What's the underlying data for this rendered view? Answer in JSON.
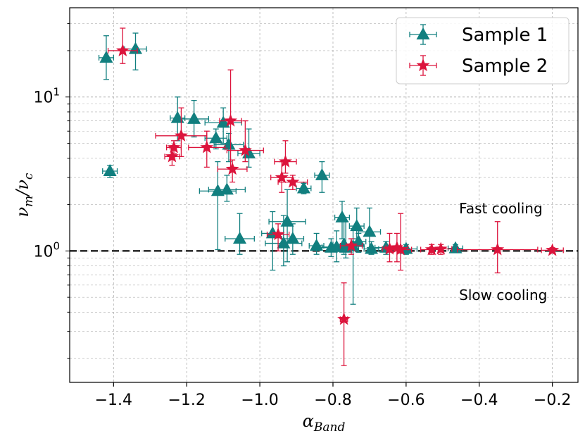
{
  "chart_data": {
    "type": "scatter",
    "xlabel": "α_Band",
    "ylabel": "ν_m/ν_c",
    "xlim": [
      -1.52,
      -0.13
    ],
    "ylim": [
      0.14,
      38
    ],
    "yscale": "log",
    "grid": true,
    "legend_position": "top-right",
    "x_ticks": [
      {
        "value": -1.4,
        "label": "−1.4"
      },
      {
        "value": -1.2,
        "label": "−1.2"
      },
      {
        "value": -1.0,
        "label": "−1.0"
      },
      {
        "value": -0.8,
        "label": "−0.8"
      },
      {
        "value": -0.6,
        "label": "−0.6"
      },
      {
        "value": -0.4,
        "label": "−0.4"
      },
      {
        "value": -0.2,
        "label": "−0.2"
      }
    ],
    "y_ticks": [
      {
        "value": 1,
        "base": "10",
        "exp": "0"
      },
      {
        "value": 10,
        "base": "10",
        "exp": "1"
      }
    ],
    "hline": {
      "y": 1.0,
      "style": "dashed",
      "color": "#333333"
    },
    "annotations": [
      {
        "text": "Fast cooling",
        "x": -0.455,
        "y": 1.75
      },
      {
        "text": "Slow cooling",
        "x": -0.455,
        "y": 0.48
      }
    ],
    "series": [
      {
        "name": "Sample 1",
        "marker": "triangle",
        "color": "#117f7f",
        "points": [
          {
            "x": -1.42,
            "y": 18.0,
            "xerr": 0.02,
            "ylo": 13.0,
            "yhi": 25.0
          },
          {
            "x": -1.34,
            "y": 20.5,
            "xerr": 0.03,
            "ylo": 15.0,
            "yhi": 26.0
          },
          {
            "x": -1.41,
            "y": 3.3,
            "xerr": 0.02,
            "ylo": 3.0,
            "yhi": 3.6
          },
          {
            "x": -1.225,
            "y": 7.3,
            "xerr": 0.02,
            "ylo": 5.2,
            "yhi": 10.0
          },
          {
            "x": -1.18,
            "y": 7.2,
            "xerr": 0.04,
            "ylo": 5.5,
            "yhi": 9.5
          },
          {
            "x": -1.12,
            "y": 5.4,
            "xerr": 0.03,
            "ylo": 4.6,
            "yhi": 6.2
          },
          {
            "x": -1.1,
            "y": 6.8,
            "xerr": 0.05,
            "ylo": 5.0,
            "yhi": 8.5
          },
          {
            "x": -1.085,
            "y": 4.9,
            "xerr": 0.04,
            "ylo": 3.8,
            "yhi": 5.8
          },
          {
            "x": -1.03,
            "y": 4.3,
            "xerr": 0.03,
            "ylo": 3.5,
            "yhi": 6.2
          },
          {
            "x": -1.115,
            "y": 2.45,
            "xerr": 0.05,
            "ylo": 1.02,
            "yhi": 3.8
          },
          {
            "x": -1.09,
            "y": 2.5,
            "xerr": 0.05,
            "ylo": 2.1,
            "yhi": 3.1
          },
          {
            "x": -1.055,
            "y": 1.2,
            "xerr": 0.04,
            "ylo": 0.95,
            "yhi": 1.75
          },
          {
            "x": -0.965,
            "y": 1.3,
            "xerr": 0.03,
            "ylo": 0.75,
            "yhi": 1.8
          },
          {
            "x": -0.935,
            "y": 1.12,
            "xerr": 0.05,
            "ylo": 0.8,
            "yhi": 1.7
          },
          {
            "x": -0.925,
            "y": 1.55,
            "xerr": 0.05,
            "ylo": 0.85,
            "yhi": 2.5
          },
          {
            "x": -0.91,
            "y": 1.2,
            "xerr": 0.03,
            "ylo": 0.95,
            "yhi": 1.5
          },
          {
            "x": -0.88,
            "y": 2.55,
            "xerr": 0.02,
            "ylo": 2.35,
            "yhi": 2.75
          },
          {
            "x": -0.83,
            "y": 3.1,
            "xerr": 0.02,
            "ylo": 2.4,
            "yhi": 3.8
          },
          {
            "x": -0.845,
            "y": 1.08,
            "xerr": 0.02,
            "ylo": 0.95,
            "yhi": 1.3
          },
          {
            "x": -0.805,
            "y": 1.05,
            "xerr": 0.03,
            "ylo": 0.92,
            "yhi": 1.2
          },
          {
            "x": -0.79,
            "y": 1.06,
            "xerr": 0.04,
            "ylo": 0.85,
            "yhi": 1.35
          },
          {
            "x": -0.775,
            "y": 1.65,
            "xerr": 0.02,
            "ylo": 1.2,
            "yhi": 2.1
          },
          {
            "x": -0.77,
            "y": 1.1,
            "xerr": 0.03,
            "ylo": 0.95,
            "yhi": 1.6
          },
          {
            "x": -0.765,
            "y": 1.05,
            "xerr": 0.02,
            "ylo": 0.9,
            "yhi": 1.55
          },
          {
            "x": -0.745,
            "y": 1.07,
            "xerr": 0.03,
            "ylo": 0.45,
            "yhi": 1.4
          },
          {
            "x": -0.735,
            "y": 1.45,
            "xerr": 0.02,
            "ylo": 1.2,
            "yhi": 1.9
          },
          {
            "x": -0.73,
            "y": 1.15,
            "xerr": 0.02,
            "ylo": 0.98,
            "yhi": 1.3
          },
          {
            "x": -0.7,
            "y": 1.33,
            "xerr": 0.03,
            "ylo": 1.05,
            "yhi": 1.9
          },
          {
            "x": -0.695,
            "y": 1.03,
            "xerr": 0.02,
            "ylo": 0.95,
            "yhi": 1.15
          },
          {
            "x": -0.655,
            "y": 1.05,
            "xerr": 0.03,
            "ylo": 0.95,
            "yhi": 1.15
          },
          {
            "x": -0.6,
            "y": 1.03,
            "xerr": 0.03,
            "ylo": 0.95,
            "yhi": 1.1
          },
          {
            "x": -0.465,
            "y": 1.04,
            "xerr": 0.02,
            "ylo": 0.98,
            "yhi": 1.1
          }
        ]
      },
      {
        "name": "Sample 2",
        "marker": "star",
        "color": "#dc143c",
        "points": [
          {
            "x": -1.375,
            "y": 20.0,
            "xerr": 0.04,
            "ylo": 16.5,
            "yhi": 28.0
          },
          {
            "x": -1.215,
            "y": 5.6,
            "xerr": 0.07,
            "ylo": 4.1,
            "yhi": 8.5
          },
          {
            "x": -1.235,
            "y": 4.7,
            "xerr": 0.02,
            "ylo": 4.3,
            "yhi": 5.2
          },
          {
            "x": -1.24,
            "y": 4.1,
            "xerr": 0.02,
            "ylo": 3.6,
            "yhi": 4.6
          },
          {
            "x": -1.145,
            "y": 4.7,
            "xerr": 0.05,
            "ylo": 3.5,
            "yhi": 6.0
          },
          {
            "x": -1.08,
            "y": 7.0,
            "xerr": 0.03,
            "ylo": 3.4,
            "yhi": 15.0
          },
          {
            "x": -1.075,
            "y": 3.4,
            "xerr": 0.04,
            "ylo": 2.8,
            "yhi": 3.9
          },
          {
            "x": -1.04,
            "y": 4.5,
            "xerr": 0.05,
            "ylo": 3.8,
            "yhi": 7.0
          },
          {
            "x": -0.93,
            "y": 3.8,
            "xerr": 0.03,
            "ylo": 3.2,
            "yhi": 5.2
          },
          {
            "x": -0.94,
            "y": 3.0,
            "xerr": 0.03,
            "ylo": 2.4,
            "yhi": 3.8
          },
          {
            "x": -0.91,
            "y": 2.8,
            "xerr": 0.04,
            "ylo": 2.5,
            "yhi": 3.1
          },
          {
            "x": -0.95,
            "y": 1.28,
            "xerr": 0.03,
            "ylo": 1.0,
            "yhi": 1.5
          },
          {
            "x": -0.77,
            "y": 0.36,
            "xerr": 0.01,
            "ylo": 0.18,
            "yhi": 0.62
          },
          {
            "x": -0.75,
            "y": 1.08,
            "xerr": 0.03,
            "ylo": 0.95,
            "yhi": 1.2
          },
          {
            "x": -0.645,
            "y": 1.03,
            "xerr": 0.02,
            "ylo": 0.85,
            "yhi": 1.3
          },
          {
            "x": -0.625,
            "y": 1.05,
            "xerr": 0.03,
            "ylo": 0.85,
            "yhi": 1.3
          },
          {
            "x": -0.615,
            "y": 1.02,
            "xerr": 0.03,
            "ylo": 0.75,
            "yhi": 1.75
          },
          {
            "x": -0.53,
            "y": 1.02,
            "xerr": 0.03,
            "ylo": 0.95,
            "yhi": 1.1
          },
          {
            "x": -0.505,
            "y": 1.03,
            "xerr": 0.03,
            "ylo": 0.95,
            "yhi": 1.1
          },
          {
            "x": -0.35,
            "y": 1.02,
            "xerr": 0.11,
            "ylo": 0.72,
            "yhi": 1.55
          },
          {
            "x": -0.2,
            "y": 1.01,
            "xerr": 0.03,
            "ylo": 0.98,
            "yhi": 1.05
          }
        ]
      }
    ]
  }
}
